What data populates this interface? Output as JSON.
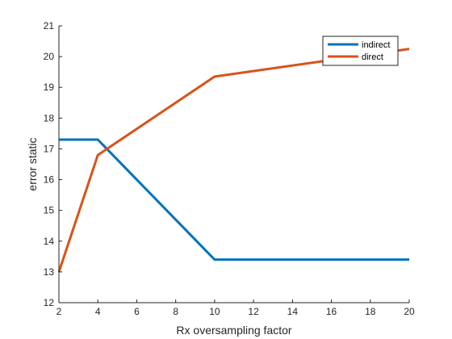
{
  "chart_data": {
    "type": "line",
    "title": "",
    "xlabel": "Rx oversampling factor",
    "ylabel": "error static",
    "xlim": [
      2,
      20
    ],
    "ylim": [
      12,
      21
    ],
    "xticks": [
      2,
      4,
      6,
      8,
      10,
      12,
      14,
      16,
      18,
      20
    ],
    "yticks": [
      12,
      13,
      14,
      15,
      16,
      17,
      18,
      19,
      20,
      21
    ],
    "grid": false,
    "legend_position": "top-right",
    "series": [
      {
        "name": "indirect",
        "color": "#0072BD",
        "points": [
          [
            2,
            17.3
          ],
          [
            4,
            17.3
          ],
          [
            10,
            13.4
          ],
          [
            20,
            13.4
          ]
        ]
      },
      {
        "name": "direct",
        "color": "#D95319",
        "points": [
          [
            2,
            13.0
          ],
          [
            4,
            16.8
          ],
          [
            10,
            19.35
          ],
          [
            20,
            20.25
          ]
        ]
      }
    ]
  }
}
